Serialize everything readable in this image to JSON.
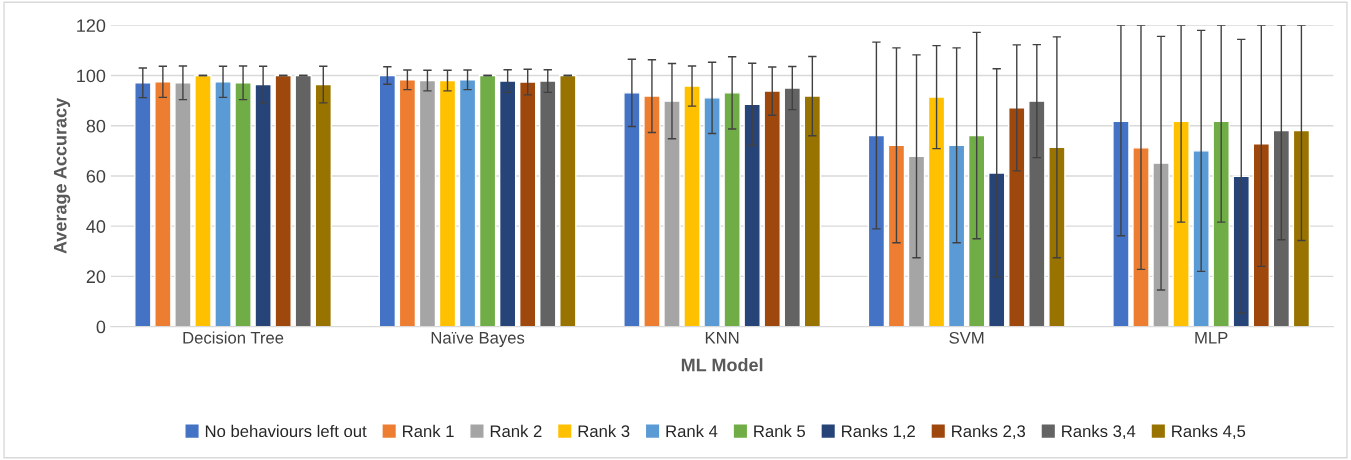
{
  "chart_data": {
    "type": "bar",
    "xlabel": "ML Model",
    "ylabel": "Average Accuracy",
    "categories": [
      "Decision Tree",
      "Naïve Bayes",
      "KNN",
      "SVM",
      "MLP"
    ],
    "ylim": [
      0,
      120
    ],
    "yticks": [
      0,
      20,
      40,
      60,
      80,
      100,
      120
    ],
    "grid": "y",
    "legend": "bottom",
    "series": [
      {
        "name": "No behaviours left out",
        "color": "#4472c4",
        "values": [
          97.1,
          100,
          93.1,
          76.1,
          81.8
        ],
        "errors": [
          5.9,
          3.5,
          13.4,
          37.2,
          [
            36.2,
            120
          ]
        ]
      },
      {
        "name": "Rank 1",
        "color": "#ed7d31",
        "values": [
          97.5,
          98.3,
          91.8,
          72.2,
          71.2
        ],
        "errors": [
          6.2,
          3.9,
          14.5,
          38.8,
          [
            22.8,
            120
          ]
        ]
      },
      {
        "name": "Rank 2",
        "color": "#a5a5a5",
        "values": [
          97.1,
          98.0,
          89.8,
          67.8,
          65.1
        ],
        "errors": [
          6.7,
          4.1,
          15.0,
          40.4,
          50.5
        ]
      },
      {
        "name": "Rank 3",
        "color": "#ffc000",
        "values": [
          100,
          98.0,
          95.8,
          91.4,
          81.8
        ],
        "errors": [
          0,
          4.1,
          8.0,
          20.5,
          [
            41.6,
            120
          ]
        ]
      },
      {
        "name": "Rank 4",
        "color": "#5b9bd5",
        "values": [
          97.5,
          98.3,
          91.1,
          72.2,
          70.0
        ],
        "errors": [
          6.2,
          3.9,
          14.2,
          38.8,
          48.0
        ]
      },
      {
        "name": "Rank 5",
        "color": "#70ad47",
        "values": [
          97.1,
          100,
          93.1,
          76.1,
          81.8
        ],
        "errors": [
          6.7,
          0,
          14.4,
          41.1,
          [
            41.6,
            120
          ]
        ]
      },
      {
        "name": "Ranks 1,2",
        "color": "#264478",
        "values": [
          96.4,
          97.8,
          88.5,
          61.2,
          59.9
        ],
        "errors": [
          7.3,
          4.5,
          16.4,
          41.5,
          54.5
        ]
      },
      {
        "name": "Ranks 2,3",
        "color": "#9e480e",
        "values": [
          100,
          97.4,
          93.8,
          87.1,
          72.8
        ],
        "errors": [
          0,
          5.1,
          9.6,
          25.1,
          [
            24.0,
            120
          ]
        ]
      },
      {
        "name": "Ranks 3,4",
        "color": "#636363",
        "values": [
          100,
          97.8,
          95.0,
          89.8,
          78.1
        ],
        "errors": [
          0,
          4.5,
          8.6,
          22.5,
          [
            34.6,
            120
          ]
        ]
      },
      {
        "name": "Ranks 4,5",
        "color": "#997300",
        "values": [
          96.4,
          100,
          91.8,
          71.4,
          78.1
        ],
        "errors": [
          7.3,
          0,
          15.8,
          44.0,
          [
            34.3,
            120
          ]
        ]
      }
    ]
  }
}
